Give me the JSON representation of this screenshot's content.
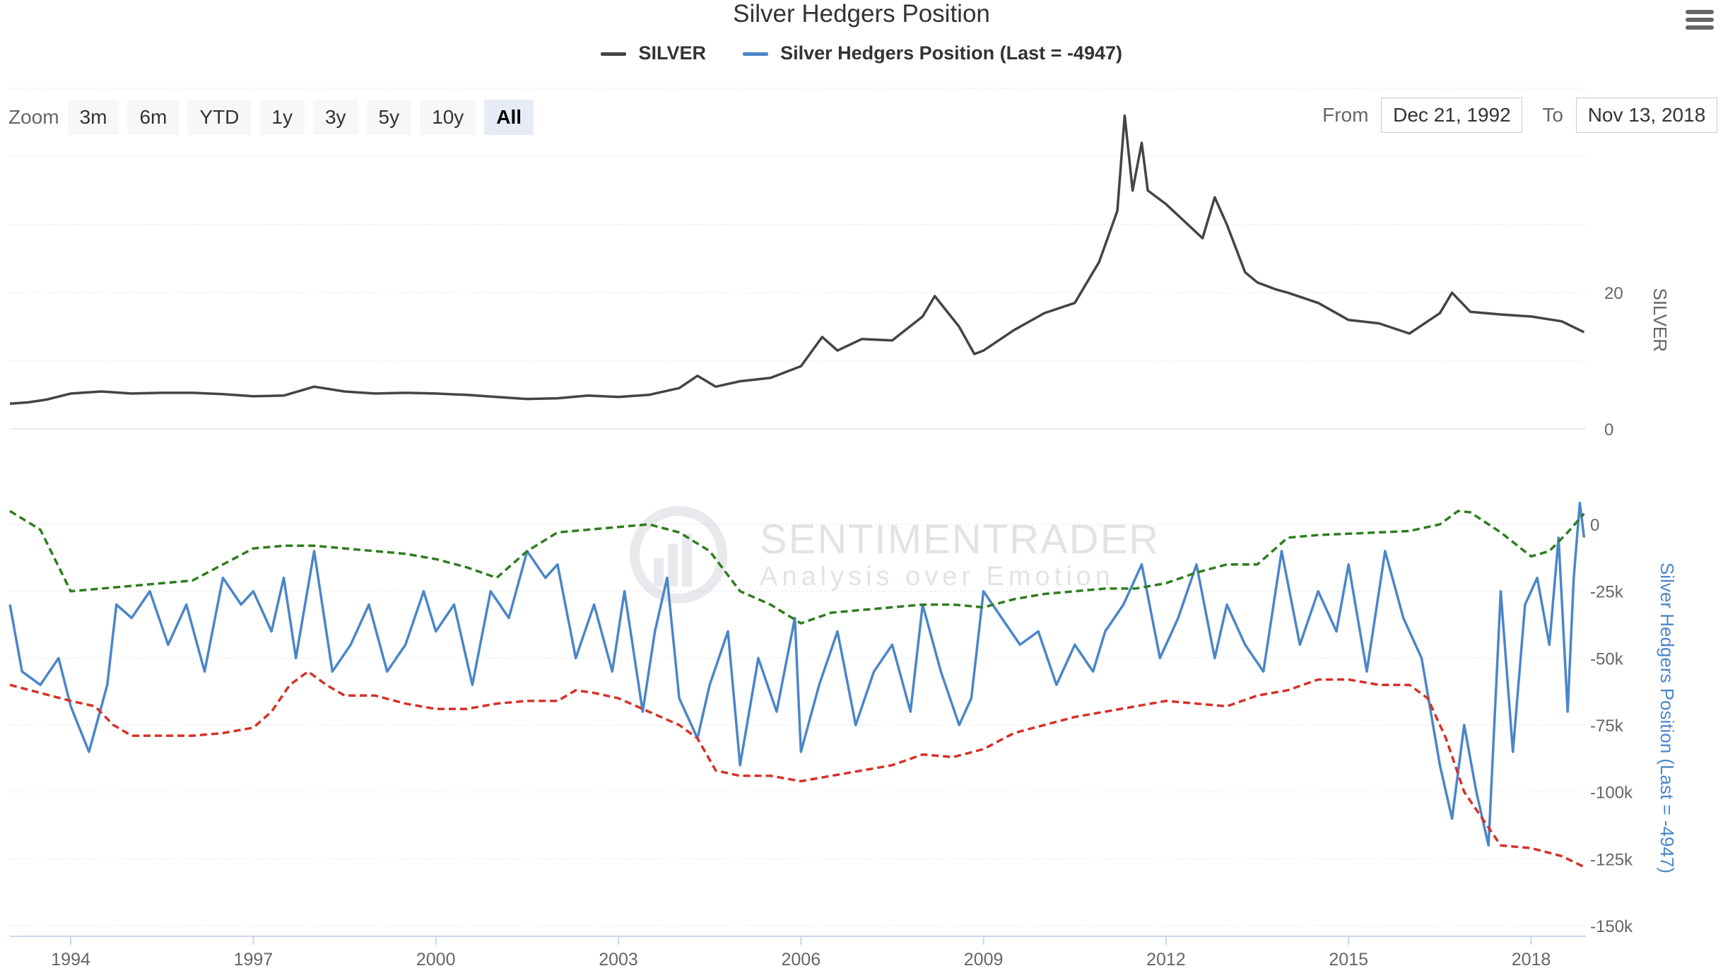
{
  "title": "Silver Hedgers Position",
  "legend": [
    {
      "label": "SILVER",
      "color": "#434348"
    },
    {
      "label": "Silver Hedgers Position (Last = -4947)",
      "color": "#4a86c9"
    }
  ],
  "zoom": {
    "label": "Zoom",
    "buttons": [
      "3m",
      "6m",
      "YTD",
      "1y",
      "3y",
      "5y",
      "10y",
      "All"
    ],
    "active": "All"
  },
  "range": {
    "from_label": "From",
    "from_value": "Dec 21, 1992",
    "to_label": "To",
    "to_value": "Nov 13, 2018"
  },
  "watermark": {
    "brand": "SENTIMENTRADER",
    "tagline": "Analysis over Emotion"
  },
  "chart_data": [
    {
      "type": "line",
      "name": "SILVER",
      "ylabel": "SILVER",
      "ylim": [
        0,
        50
      ],
      "yticks": [
        0,
        20
      ],
      "xlim": [
        1993.0,
        2018.9
      ],
      "xticks": [
        "1994",
        "1997",
        "2000",
        "2003",
        "2006",
        "2009",
        "2012",
        "2015",
        "2018"
      ],
      "color": "#434348",
      "x": [
        1993.0,
        1993.3,
        1993.6,
        1994.0,
        1994.5,
        1995.0,
        1995.5,
        1996.0,
        1996.5,
        1997.0,
        1997.5,
        1998.0,
        1998.5,
        1999.0,
        1999.5,
        2000.0,
        2000.5,
        2001.0,
        2001.5,
        2002.0,
        2002.5,
        2003.0,
        2003.5,
        2004.0,
        2004.3,
        2004.6,
        2005.0,
        2005.5,
        2006.0,
        2006.35,
        2006.6,
        2007.0,
        2007.5,
        2008.0,
        2008.2,
        2008.6,
        2008.85,
        2009.0,
        2009.5,
        2010.0,
        2010.5,
        2010.9,
        2011.2,
        2011.32,
        2011.45,
        2011.6,
        2011.7,
        2012.0,
        2012.3,
        2012.6,
        2012.8,
        2013.0,
        2013.3,
        2013.5,
        2013.8,
        2014.0,
        2014.5,
        2015.0,
        2015.5,
        2016.0,
        2016.5,
        2016.7,
        2017.0,
        2017.5,
        2018.0,
        2018.5,
        2018.87
      ],
      "values": [
        3.7,
        3.9,
        4.3,
        5.2,
        5.5,
        5.2,
        5.3,
        5.3,
        5.1,
        4.8,
        4.9,
        6.2,
        5.5,
        5.2,
        5.3,
        5.2,
        5.0,
        4.7,
        4.4,
        4.5,
        4.9,
        4.7,
        5.0,
        6.0,
        7.8,
        6.2,
        7.0,
        7.5,
        9.2,
        13.5,
        11.5,
        13.2,
        13.0,
        16.5,
        19.5,
        15.0,
        11.0,
        11.5,
        14.5,
        17.0,
        18.5,
        24.5,
        32.0,
        46.0,
        35.0,
        42.0,
        35.0,
        33.0,
        30.5,
        28.0,
        34.0,
        30.0,
        23.0,
        21.5,
        20.5,
        20.0,
        18.5,
        16.0,
        15.5,
        14.0,
        17.0,
        20.0,
        17.2,
        16.8,
        16.5,
        15.8,
        14.2
      ]
    },
    {
      "type": "line",
      "name": "Silver Hedgers Position (Last = -4947)",
      "ylabel": "Silver Hedgers Position (Last = -4947)",
      "ylim": [
        -150000,
        0
      ],
      "yticks": [
        0,
        -25000,
        -50000,
        -75000,
        -100000,
        -125000,
        -150000
      ],
      "ytick_labels": [
        "0",
        "-25k",
        "-50k",
        "-75k",
        "-100k",
        "-125k",
        "-150k"
      ],
      "xlim": [
        1993.0,
        2018.9
      ],
      "series": [
        {
          "color": "#4a86c9",
          "dash": "solid",
          "x": [
            1993.0,
            1993.2,
            1993.5,
            1993.8,
            1994.0,
            1994.3,
            1994.6,
            1994.75,
            1995.0,
            1995.3,
            1995.6,
            1995.9,
            1996.2,
            1996.5,
            1996.8,
            1997.0,
            1997.3,
            1997.5,
            1997.7,
            1998.0,
            1998.3,
            1998.6,
            1998.9,
            1999.2,
            1999.5,
            1999.8,
            2000.0,
            2000.3,
            2000.6,
            2000.9,
            2001.2,
            2001.5,
            2001.8,
            2002.0,
            2002.3,
            2002.6,
            2002.9,
            2003.1,
            2003.4,
            2003.6,
            2003.8,
            2004.0,
            2004.3,
            2004.5,
            2004.8,
            2005.0,
            2005.3,
            2005.6,
            2005.9,
            2006.0,
            2006.3,
            2006.6,
            2006.9,
            2007.2,
            2007.5,
            2007.8,
            2008.0,
            2008.3,
            2008.6,
            2008.8,
            2009.0,
            2009.3,
            2009.6,
            2009.9,
            2010.2,
            2010.5,
            2010.8,
            2011.0,
            2011.3,
            2011.6,
            2011.9,
            2012.2,
            2012.5,
            2012.8,
            2013.0,
            2013.3,
            2013.6,
            2013.9,
            2014.2,
            2014.5,
            2014.8,
            2015.0,
            2015.3,
            2015.6,
            2015.9,
            2016.2,
            2016.5,
            2016.7,
            2016.9,
            2017.1,
            2017.3,
            2017.5,
            2017.7,
            2017.9,
            2018.1,
            2018.3,
            2018.45,
            2018.6,
            2018.7,
            2018.8,
            2018.87
          ],
          "values": [
            -30000,
            -55000,
            -60000,
            -50000,
            -68000,
            -85000,
            -60000,
            -30000,
            -35000,
            -25000,
            -45000,
            -30000,
            -55000,
            -20000,
            -30000,
            -25000,
            -40000,
            -20000,
            -50000,
            -10000,
            -55000,
            -45000,
            -30000,
            -55000,
            -45000,
            -25000,
            -40000,
            -30000,
            -60000,
            -25000,
            -35000,
            -10000,
            -20000,
            -15000,
            -50000,
            -30000,
            -55000,
            -25000,
            -70000,
            -40000,
            -20000,
            -65000,
            -80000,
            -60000,
            -40000,
            -90000,
            -50000,
            -70000,
            -35000,
            -85000,
            -60000,
            -40000,
            -75000,
            -55000,
            -45000,
            -70000,
            -30000,
            -55000,
            -75000,
            -65000,
            -25000,
            -35000,
            -45000,
            -40000,
            -60000,
            -45000,
            -55000,
            -40000,
            -30000,
            -15000,
            -50000,
            -35000,
            -15000,
            -50000,
            -30000,
            -45000,
            -55000,
            -10000,
            -45000,
            -25000,
            -40000,
            -15000,
            -55000,
            -10000,
            -35000,
            -50000,
            -90000,
            -110000,
            -75000,
            -100000,
            -120000,
            -25000,
            -85000,
            -30000,
            -20000,
            -45000,
            -5000,
            -70000,
            -20000,
            8000,
            -4947
          ]
        },
        {
          "color": "#2e7d1e",
          "dash": "dashed",
          "x": [
            1993.0,
            1993.5,
            1994.0,
            1994.5,
            1995.0,
            1995.5,
            1996.0,
            1996.5,
            1997.0,
            1997.5,
            1998.0,
            1998.5,
            1999.0,
            1999.5,
            2000.0,
            2000.5,
            2001.0,
            2001.5,
            2002.0,
            2002.5,
            2003.0,
            2003.5,
            2004.0,
            2004.5,
            2005.0,
            2005.5,
            2006.0,
            2006.5,
            2007.0,
            2007.5,
            2008.0,
            2008.5,
            2009.0,
            2009.5,
            2010.0,
            2010.5,
            2011.0,
            2011.5,
            2012.0,
            2012.5,
            2013.0,
            2013.5,
            2014.0,
            2014.5,
            2015.0,
            2015.5,
            2016.0,
            2016.5,
            2016.8,
            2017.0,
            2017.5,
            2018.0,
            2018.3,
            2018.6,
            2018.87
          ],
          "values": [
            5000,
            -2000,
            -25000,
            -24000,
            -23000,
            -22000,
            -21000,
            -15000,
            -9000,
            -8000,
            -8000,
            -9000,
            -10000,
            -11000,
            -13000,
            -16000,
            -20000,
            -10000,
            -3000,
            -2000,
            -1000,
            0,
            -3000,
            -10000,
            -25000,
            -30000,
            -37000,
            -33000,
            -32000,
            -31000,
            -30000,
            -30000,
            -31000,
            -28000,
            -26000,
            -25000,
            -24000,
            -24000,
            -22000,
            -18000,
            -15000,
            -15000,
            -5000,
            -4000,
            -3500,
            -3000,
            -2500,
            0,
            5000,
            4500,
            -3000,
            -12000,
            -10000,
            -3000,
            4000
          ]
        },
        {
          "color": "#d73027",
          "dash": "dashed",
          "x": [
            1993.0,
            1993.5,
            1994.0,
            1994.4,
            1994.7,
            1995.0,
            1995.5,
            1996.0,
            1996.5,
            1997.0,
            1997.3,
            1997.6,
            1997.9,
            1998.2,
            1998.5,
            1999.0,
            1999.5,
            2000.0,
            2000.5,
            2001.0,
            2001.5,
            2002.0,
            2002.3,
            2002.6,
            2003.0,
            2003.5,
            2004.0,
            2004.3,
            2004.6,
            2005.0,
            2005.5,
            2006.0,
            2006.5,
            2007.0,
            2007.5,
            2008.0,
            2008.5,
            2009.0,
            2009.5,
            2010.0,
            2010.5,
            2011.0,
            2011.5,
            2012.0,
            2012.5,
            2013.0,
            2013.5,
            2014.0,
            2014.5,
            2015.0,
            2015.5,
            2016.0,
            2016.3,
            2016.6,
            2016.9,
            2017.2,
            2017.5,
            2018.0,
            2018.5,
            2018.87
          ],
          "values": [
            -60000,
            -63000,
            -66000,
            -68000,
            -75000,
            -79000,
            -79000,
            -79000,
            -78000,
            -76000,
            -70000,
            -60000,
            -55000,
            -60000,
            -64000,
            -64000,
            -67000,
            -69000,
            -69000,
            -67000,
            -66000,
            -66000,
            -62000,
            -63000,
            -65000,
            -70000,
            -75000,
            -80000,
            -92000,
            -94000,
            -94000,
            -96000,
            -94000,
            -92000,
            -90000,
            -86000,
            -87000,
            -84000,
            -78000,
            -75000,
            -72000,
            -70000,
            -68000,
            -66000,
            -67000,
            -68000,
            -64000,
            -62000,
            -58000,
            -58000,
            -60000,
            -60000,
            -65000,
            -80000,
            -100000,
            -110000,
            -120000,
            -121000,
            -124000,
            -128000
          ]
        }
      ]
    }
  ]
}
